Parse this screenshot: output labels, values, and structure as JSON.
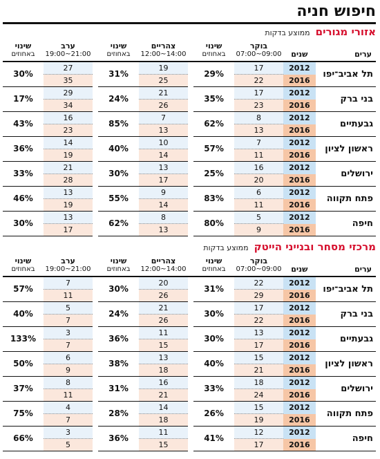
{
  "title": "חיפוש חניה",
  "columns": {
    "city": "ערים",
    "years": "שנים",
    "morning": "בוקר",
    "morning_hours": "09:00~07:00",
    "change": "שינוי",
    "change_sub": "באחוזים",
    "noon": "צהריים",
    "noon_hours": "14:00~12:00",
    "evening": "ערב",
    "evening_hours": "21:00~19:00"
  },
  "sections": [
    {
      "title": "אזורי מגורים",
      "subtitle": "ממוצע בדקות",
      "rows": [
        {
          "city": "תל אביב־יפו",
          "y1": "2012",
          "y2": "2016",
          "m1": "17",
          "m2": "22",
          "mp": "29%",
          "n1": "19",
          "n2": "25",
          "np": "31%",
          "e1": "27",
          "e2": "35",
          "ep": "30%"
        },
        {
          "city": "בני ברק",
          "y1": "2012",
          "y2": "2016",
          "m1": "17",
          "m2": "23",
          "mp": "35%",
          "n1": "21",
          "n2": "26",
          "np": "24%",
          "e1": "29",
          "e2": "34",
          "ep": "17%"
        },
        {
          "city": "גבעתיים",
          "y1": "2012",
          "y2": "2016",
          "m1": "8",
          "m2": "13",
          "mp": "62%",
          "n1": "7",
          "n2": "13",
          "np": "85%",
          "e1": "16",
          "e2": "23",
          "ep": "43%"
        },
        {
          "city": "ראשון לציון",
          "y1": "2012",
          "y2": "2016",
          "m1": "7",
          "m2": "11",
          "mp": "57%",
          "n1": "10",
          "n2": "14",
          "np": "40%",
          "e1": "14",
          "e2": "19",
          "ep": "36%"
        },
        {
          "city": "ירושלים",
          "y1": "2012",
          "y2": "2016",
          "m1": "16",
          "m2": "20",
          "mp": "25%",
          "n1": "13",
          "n2": "17",
          "np": "30%",
          "e1": "21",
          "e2": "28",
          "ep": "33%"
        },
        {
          "city": "פתח תקווה",
          "y1": "2012",
          "y2": "2016",
          "m1": "6",
          "m2": "11",
          "mp": "83%",
          "n1": "9",
          "n2": "14",
          "np": "55%",
          "e1": "13",
          "e2": "19",
          "ep": "46%"
        },
        {
          "city": "חיפה",
          "y1": "2012",
          "y2": "2016",
          "m1": "5",
          "m2": "9",
          "mp": "80%",
          "n1": "8",
          "n2": "13",
          "np": "62%",
          "e1": "13",
          "e2": "17",
          "ep": "30%"
        }
      ]
    },
    {
      "title": "מרכזי מסחר ובנייני הייטק",
      "subtitle": "ממוצע בדקות",
      "rows": [
        {
          "city": "תל אביב־יפו",
          "y1": "2012",
          "y2": "2016",
          "m1": "22",
          "m2": "29",
          "mp": "31%",
          "n1": "20",
          "n2": "26",
          "np": "30%",
          "e1": "7",
          "e2": "11",
          "ep": "57%"
        },
        {
          "city": "בני ברק",
          "y1": "2012",
          "y2": "2016",
          "m1": "17",
          "m2": "22",
          "mp": "30%",
          "n1": "21",
          "n2": "26",
          "np": "24%",
          "e1": "5",
          "e2": "7",
          "ep": "40%"
        },
        {
          "city": "גבעתיים",
          "y1": "2012",
          "y2": "2016",
          "m1": "13",
          "m2": "17",
          "mp": "30%",
          "n1": "11",
          "n2": "15",
          "np": "36%",
          "e1": "3",
          "e2": "7",
          "ep": "133%"
        },
        {
          "city": "ראשון לציון",
          "y1": "2012",
          "y2": "2016",
          "m1": "15",
          "m2": "21",
          "mp": "40%",
          "n1": "13",
          "n2": "18",
          "np": "38%",
          "e1": "6",
          "e2": "9",
          "ep": "50%"
        },
        {
          "city": "ירושלים",
          "y1": "2012",
          "y2": "2016",
          "m1": "18",
          "m2": "24",
          "mp": "33%",
          "n1": "16",
          "n2": "21",
          "np": "31%",
          "e1": "8",
          "e2": "11",
          "ep": "37%"
        },
        {
          "city": "פתח תקווה",
          "y1": "2012",
          "y2": "2016",
          "m1": "15",
          "m2": "19",
          "mp": "26%",
          "n1": "14",
          "n2": "18",
          "np": "28%",
          "e1": "4",
          "e2": "7",
          "ep": "75%"
        },
        {
          "city": "חיפה",
          "y1": "2012",
          "y2": "2016",
          "m1": "12",
          "m2": "17",
          "mp": "41%",
          "n1": "11",
          "n2": "15",
          "np": "36%",
          "e1": "3",
          "e2": "5",
          "ep": "66%"
        }
      ]
    }
  ]
}
